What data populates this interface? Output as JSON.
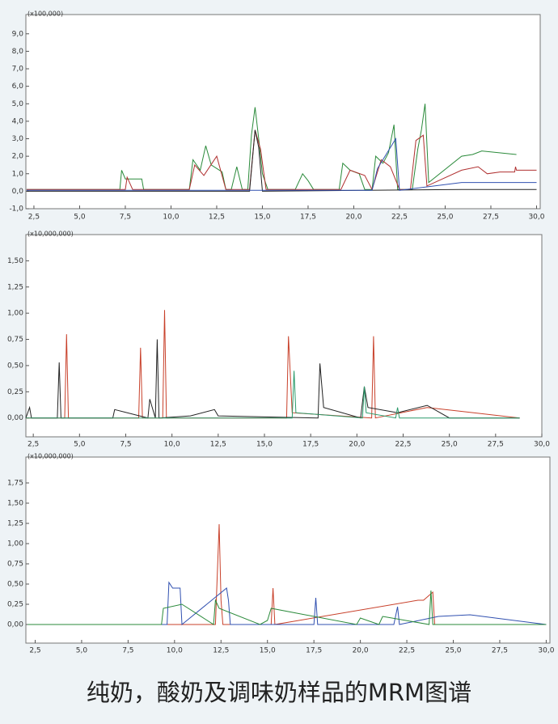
{
  "chart_data": [
    {
      "type": "line",
      "y_multiplier": "(x100,000)",
      "xlim": [
        2.06,
        30.2
      ],
      "ylim": [
        -1.0,
        10.1
      ],
      "xticks": [
        {
          "value": 2.5,
          "label": "2,5"
        },
        {
          "value": 5.0,
          "label": "5,0"
        },
        {
          "value": 7.5,
          "label": "7,5"
        },
        {
          "value": 10.0,
          "label": "10,0"
        },
        {
          "value": 12.5,
          "label": "12,5"
        },
        {
          "value": 15.0,
          "label": "15,0"
        },
        {
          "value": 17.5,
          "label": "17,5"
        },
        {
          "value": 20.0,
          "label": "20,0"
        },
        {
          "value": 22.5,
          "label": "22,5"
        },
        {
          "value": 25.0,
          "label": "25,0"
        },
        {
          "value": 27.5,
          "label": "27,5"
        },
        {
          "value": 30.0,
          "label": "30,0"
        }
      ],
      "yticks": [
        {
          "value": -1.0,
          "label": "-1,0"
        },
        {
          "value": 0.0,
          "label": "0,0"
        },
        {
          "value": 1.0,
          "label": "1,0"
        },
        {
          "value": 2.0,
          "label": "2,0"
        },
        {
          "value": 3.0,
          "label": "3,0"
        },
        {
          "value": 4.0,
          "label": "4,0"
        },
        {
          "value": 5.0,
          "label": "5,0"
        },
        {
          "value": 6.0,
          "label": "6,0"
        },
        {
          "value": 7.0,
          "label": "7,0"
        },
        {
          "value": 8.0,
          "label": "8,0"
        },
        {
          "value": 9.0,
          "label": "9,0"
        }
      ],
      "series": [
        {
          "color": "#2a8a3a",
          "x": [
            2.1,
            7.2,
            7.3,
            7.5,
            8.4,
            8.5,
            11,
            11.2,
            11.6,
            11.9,
            12.2,
            12.8,
            13.0,
            13.3,
            13.6,
            13.9,
            14.2,
            14.4,
            14.6,
            14.8,
            15.0,
            15.3,
            16.8,
            17.2,
            17.5,
            17.8,
            19.2,
            19.4,
            19.8,
            20.3,
            20.6,
            21.0,
            21.2,
            21.6,
            21.9,
            22.2,
            22.4,
            23.2,
            23.5,
            23.7,
            23.9,
            24.1,
            25.9,
            26.5,
            27.0,
            28.9
          ],
          "values": [
            0.1,
            0.1,
            1.2,
            0.7,
            0.7,
            0.1,
            0.1,
            1.8,
            1.2,
            2.6,
            1.5,
            1.1,
            0.1,
            0.1,
            1.4,
            0.1,
            0.1,
            3.2,
            4.8,
            3.0,
            1.0,
            0.1,
            0.1,
            1.0,
            0.6,
            0.1,
            0.1,
            1.6,
            1.2,
            1.0,
            0.1,
            0.1,
            2.0,
            1.6,
            2.2,
            3.8,
            0.1,
            0.1,
            2.4,
            3.5,
            5.0,
            0.5,
            2.0,
            2.1,
            2.3,
            2.1
          ]
        },
        {
          "color": "#b03030",
          "x": [
            2.1,
            7.5,
            7.6,
            7.9,
            11.0,
            11.3,
            11.8,
            12.5,
            13.0,
            14.3,
            14.6,
            14.9,
            15.2,
            19.3,
            19.8,
            20.6,
            21.0,
            21.5,
            22.0,
            22.5,
            23.1,
            23.4,
            23.8,
            24.0,
            25.9,
            26.8,
            27.3,
            28.0,
            28.8,
            28.85,
            28.9,
            30.0
          ],
          "values": [
            0.1,
            0.1,
            0.8,
            0.1,
            0.1,
            1.5,
            0.9,
            2.0,
            0.1,
            0.1,
            3.5,
            2.4,
            0.1,
            0.1,
            1.2,
            0.9,
            0.1,
            1.8,
            1.4,
            0.1,
            0.1,
            2.9,
            3.2,
            0.3,
            1.2,
            1.4,
            1.0,
            1.1,
            1.1,
            1.4,
            1.2,
            1.2
          ]
        },
        {
          "color": "#222222",
          "x": [
            2.1,
            14.3,
            14.6,
            14.8,
            15.0,
            25.9,
            30.0
          ],
          "values": [
            0.0,
            0.0,
            3.5,
            2.5,
            0.0,
            0.1,
            0.1
          ]
        },
        {
          "color": "#3050b0",
          "x": [
            2.1,
            21.0,
            21.3,
            22.3,
            22.5,
            25.9,
            30.0
          ],
          "values": [
            0.05,
            0.05,
            1.3,
            3.0,
            0.05,
            0.5,
            0.5
          ]
        }
      ]
    },
    {
      "type": "line",
      "y_multiplier": "(x10,000,000)",
      "xlim": [
        2.1,
        30.0
      ],
      "ylim": [
        -0.18,
        1.75
      ],
      "xticks": [
        {
          "value": 2.5,
          "label": "2,5"
        },
        {
          "value": 5.0,
          "label": "5,0"
        },
        {
          "value": 7.5,
          "label": "7,5"
        },
        {
          "value": 10.0,
          "label": "10,0"
        },
        {
          "value": 12.5,
          "label": "12,5"
        },
        {
          "value": 15.0,
          "label": "15,0"
        },
        {
          "value": 17.5,
          "label": "17,5"
        },
        {
          "value": 20.0,
          "label": "20,0"
        },
        {
          "value": 22.5,
          "label": "22,5"
        },
        {
          "value": 25.0,
          "label": "25,0"
        },
        {
          "value": 27.5,
          "label": "27,5"
        },
        {
          "value": 30.0,
          "label": "30,0"
        }
      ],
      "yticks": [
        {
          "value": 0.0,
          "label": "0,00"
        },
        {
          "value": 0.25,
          "label": "0,25"
        },
        {
          "value": 0.5,
          "label": "0,50"
        },
        {
          "value": 0.75,
          "label": "0,75"
        },
        {
          "value": 1.0,
          "label": "1,00"
        },
        {
          "value": 1.25,
          "label": "1,25"
        },
        {
          "value": 1.5,
          "label": "1,50"
        }
      ],
      "series": [
        {
          "color": "#c8402a",
          "x": [
            2.1,
            4.2,
            4.3,
            4.4,
            8.2,
            8.3,
            8.4,
            9.5,
            9.6,
            9.7,
            15,
            16.2,
            16.3,
            16.5,
            20.8,
            20.9,
            21.0,
            23.8,
            28.8
          ],
          "values": [
            0.0,
            0.0,
            0.8,
            0.0,
            0.0,
            0.67,
            0.0,
            0.0,
            1.03,
            0.0,
            0.0,
            0.0,
            0.78,
            0.05,
            0.0,
            0.78,
            0.0,
            0.1,
            0.0
          ]
        },
        {
          "color": "#222222",
          "x": [
            2.1,
            2.3,
            2.4,
            3.8,
            3.9,
            4.0,
            6.8,
            6.9,
            8.7,
            8.8,
            9.1,
            9.2,
            9.3,
            11,
            12.3,
            12.5,
            17.9,
            18.0,
            18.2,
            20.2,
            20.4,
            20.6,
            22.2,
            23.8,
            25.0,
            28.8
          ],
          "values": [
            0.0,
            0.1,
            0.0,
            0.0,
            0.53,
            0.0,
            0.0,
            0.08,
            0.0,
            0.18,
            0.0,
            0.75,
            0.0,
            0.02,
            0.08,
            0.02,
            0.0,
            0.52,
            0.1,
            0.0,
            0.3,
            0.1,
            0.05,
            0.12,
            0.0,
            0.0
          ]
        },
        {
          "color": "#2a9a6a",
          "x": [
            2.1,
            16.5,
            16.6,
            16.7,
            20.3,
            20.4,
            20.5,
            22.1,
            22.2,
            22.3,
            28.8
          ],
          "values": [
            0,
            0,
            0.45,
            0.05,
            0,
            0.3,
            0.05,
            0,
            0.1,
            0,
            0
          ]
        }
      ]
    },
    {
      "type": "line",
      "y_multiplier": "(x10,000,000)",
      "xlim": [
        2.0,
        30.2
      ],
      "ylim": [
        -0.23,
        2.07
      ],
      "xticks": [
        {
          "value": 2.5,
          "label": "2,5"
        },
        {
          "value": 5.0,
          "label": "5,0"
        },
        {
          "value": 7.5,
          "label": "7,5"
        },
        {
          "value": 10.0,
          "label": "10,0"
        },
        {
          "value": 12.5,
          "label": "12,5"
        },
        {
          "value": 15.0,
          "label": "15,0"
        },
        {
          "value": 17.5,
          "label": "17,5"
        },
        {
          "value": 20.0,
          "label": "20,0"
        },
        {
          "value": 22.5,
          "label": "22,5"
        },
        {
          "value": 25.0,
          "label": "25,0"
        },
        {
          "value": 27.5,
          "label": "27,5"
        },
        {
          "value": 30.0,
          "label": "30,0"
        }
      ],
      "yticks": [
        {
          "value": 0.0,
          "label": "0,00"
        },
        {
          "value": 0.25,
          "label": "0,25"
        },
        {
          "value": 0.5,
          "label": "0,50"
        },
        {
          "value": 0.75,
          "label": "0,75"
        },
        {
          "value": 1.0,
          "label": "1,00"
        },
        {
          "value": 1.25,
          "label": "1,25"
        },
        {
          "value": 1.5,
          "label": "1,50"
        },
        {
          "value": 1.75,
          "label": "1,75"
        }
      ],
      "series": [
        {
          "color": "#c8402a",
          "x": [
            2.1,
            12.2,
            12.4,
            12.5,
            12.6,
            15.2,
            15.3,
            15.4,
            23.1,
            23.4,
            23.9,
            24.0,
            25.9,
            30.0
          ],
          "values": [
            0,
            0,
            1.24,
            0.3,
            0,
            0,
            0.45,
            0,
            0.3,
            0.3,
            0.4,
            0,
            0,
            0
          ]
        },
        {
          "color": "#3050b0",
          "x": [
            2.1,
            9.6,
            9.7,
            9.9,
            10.3,
            10.4,
            12.8,
            12.9,
            13.0,
            17.5,
            17.6,
            17.7,
            21.8,
            22.0,
            22.1,
            24.2,
            25.9,
            30.0
          ],
          "values": [
            0,
            0,
            0.52,
            0.45,
            0.45,
            0,
            0.45,
            0.3,
            0,
            0,
            0.33,
            0,
            0,
            0.22,
            0,
            0.1,
            0.12,
            0
          ]
        },
        {
          "color": "#2a8a3a",
          "x": [
            2.1,
            9.3,
            9.4,
            10.4,
            12.1,
            12.2,
            12.4,
            14.6,
            15.0,
            15.2,
            19.8,
            20.0,
            21.0,
            21.2,
            23.7,
            23.8,
            23.9,
            30.0
          ],
          "values": [
            0,
            0,
            0.2,
            0.25,
            0,
            0.3,
            0.2,
            0,
            0.05,
            0.2,
            0,
            0.08,
            0,
            0.1,
            0,
            0.42,
            0,
            0
          ]
        }
      ]
    }
  ],
  "caption": "纯奶，酸奶及调味奶样品的MRM图谱"
}
